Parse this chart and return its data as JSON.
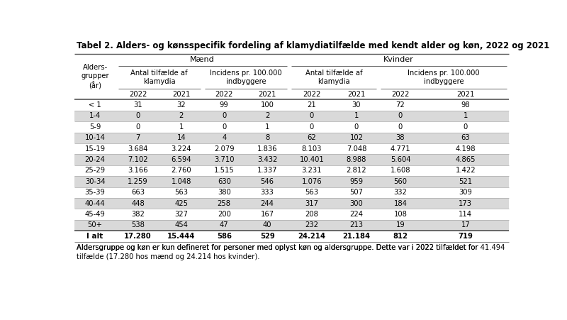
{
  "title": "Tabel 2. Alders- og kønsspecifik fordeling af klamydiatilfælde med kendt alder og køn, 2022 og 2021",
  "rows": [
    [
      "< 1",
      "31",
      "32",
      "99",
      "100",
      "21",
      "30",
      "72",
      "98"
    ],
    [
      "1-4",
      "0",
      "2",
      "0",
      "2",
      "0",
      "1",
      "0",
      "1"
    ],
    [
      "5-9",
      "0",
      "1",
      "0",
      "1",
      "0",
      "0",
      "0",
      "0"
    ],
    [
      "10-14",
      "7",
      "14",
      "4",
      "8",
      "62",
      "102",
      "38",
      "63"
    ],
    [
      "15-19",
      "3.684",
      "3.224",
      "2.079",
      "1.836",
      "8.103",
      "7.048",
      "4.771",
      "4.198"
    ],
    [
      "20-24",
      "7.102",
      "6.594",
      "3.710",
      "3.432",
      "10.401",
      "8.988",
      "5.604",
      "4.865"
    ],
    [
      "25-29",
      "3.166",
      "2.760",
      "1.515",
      "1.337",
      "3.231",
      "2.812",
      "1.608",
      "1.422"
    ],
    [
      "30-34",
      "1.259",
      "1.048",
      "630",
      "546",
      "1.076",
      "959",
      "560",
      "521"
    ],
    [
      "35-39",
      "663",
      "563",
      "380",
      "333",
      "563",
      "507",
      "332",
      "309"
    ],
    [
      "40-44",
      "448",
      "425",
      "258",
      "244",
      "317",
      "300",
      "184",
      "173"
    ],
    [
      "45-49",
      "382",
      "327",
      "200",
      "167",
      "208",
      "224",
      "108",
      "114"
    ],
    [
      "50+",
      "538",
      "454",
      "47",
      "40",
      "232",
      "213",
      "19",
      "17"
    ]
  ],
  "total_row": [
    "I alt",
    "17.280",
    "15.444",
    "586",
    "529",
    "24.214",
    "21.184",
    "812",
    "719"
  ],
  "footnote_plain": "Aldersgruppe og køn er kun defineret for personer med oplyst køn og aldersgruppe. Dette var i 2022 tilfældet for ",
  "footnote_bold": "41.494",
  "footnote_plain2": "\ntilfælde (17.280 hos mænd og 24.214 hos kvinder).",
  "row_alt_color": "#d9d9d9",
  "row_normal_color": "#ffffff",
  "line_color": "#808080",
  "title_color": "#000000",
  "text_color": "#000000"
}
